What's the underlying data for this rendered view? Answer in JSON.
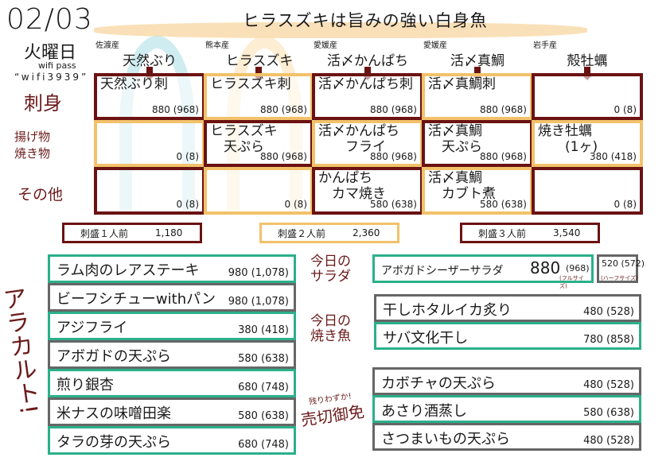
{
  "header": {
    "date": "02/03",
    "weekday": "火曜日",
    "wifi_label": "wifi pass",
    "wifi_pass": "“wifi3939”",
    "headline": "ヒラスズキは旨みの強い白身魚"
  },
  "colors": {
    "maroon": "#6b1212",
    "yellow": "#f2c26a",
    "teal": "#2bb08a",
    "gray": "#666666",
    "light_blue": "#bfe6ea"
  },
  "rows": [
    "刺身",
    "揚げ物\n焼き物",
    "その他"
  ],
  "columns": [
    {
      "origin": "佐渡産",
      "fish": "天然ぶり"
    },
    {
      "origin": "熊本産",
      "fish": "ヒラスズキ"
    },
    {
      "origin": "愛媛産",
      "fish": "活〆かんぱち"
    },
    {
      "origin": "愛媛産",
      "fish": "活〆真鯛"
    },
    {
      "origin": "岩手産",
      "fish": "殻牡蠣"
    }
  ],
  "grid": [
    [
      {
        "name": "天然ぶり刺",
        "price": "880 (968)"
      },
      {
        "name": "ヒラスズキ刺",
        "price": "880 (968)"
      },
      {
        "name": "活〆かんぱち刺",
        "price": "880 (968)"
      },
      {
        "name": "活〆真鯛刺",
        "price": "880 (968)"
      },
      {
        "name": "",
        "price": "0 (8)"
      }
    ],
    [
      {
        "name": "",
        "price": "0 (8)"
      },
      {
        "name": "ヒラスズキ\n　天ぷら",
        "price": "880 (968)"
      },
      {
        "name": "活〆かんぱち\n　　フライ",
        "price": "880 (968)"
      },
      {
        "name": "活〆真鯛\n　天ぷら",
        "price": "880 (968)"
      },
      {
        "name": "焼き牡蠣\n　　(1ヶ)",
        "price": "380 (418)"
      }
    ],
    [
      {
        "name": "",
        "price": "0 (8)"
      },
      {
        "name": "",
        "price": "0 (8)"
      },
      {
        "name": "かんぱち\n　カマ焼き",
        "price": "580 (638)"
      },
      {
        "name": "活〆真鯛\n　カブト煮",
        "price": "580 (638)"
      },
      {
        "name": "",
        "price": "0 (8)"
      }
    ]
  ],
  "sets": [
    {
      "label": "刺盛１人前",
      "price": "1,180"
    },
    {
      "label": "刺盛２人前",
      "price": "2,360"
    },
    {
      "label": "刺盛３人前",
      "price": "3,540"
    }
  ],
  "alacarte_label": "アラカルト!",
  "alacarte": [
    {
      "name": "ラム肉のレアステーキ",
      "price": "980 (1,078)"
    },
    {
      "name": "ビーフシチューwithパン",
      "price": "980 (1,078)"
    },
    {
      "name": "アジフライ",
      "price": "380 (418)"
    },
    {
      "name": "アボガドの天ぷら",
      "price": "580 (638)"
    },
    {
      "name": "煎り銀杏",
      "price": "680 (748)"
    },
    {
      "name": "米ナスの味噌田楽",
      "price": "580 (638)"
    },
    {
      "name": "タラの芽の天ぷら",
      "price": "680 (748)"
    }
  ],
  "salad": {
    "label": "今日の\nサラダ",
    "name": "アボガドシーザーサラダ",
    "price_full": "880",
    "price_full_tax": "(968)",
    "full_note": "(フルサイズ)",
    "price_half": "520 (572)",
    "half_note": "(ハーフサイズ)"
  },
  "grilled": {
    "label": "今日の\n焼き魚",
    "items": [
      {
        "name": "干しホタルイカ炙り",
        "price": "480 (528)"
      },
      {
        "name": "サバ文化干し",
        "price": "780 (858)"
      }
    ]
  },
  "soldout": {
    "note": "残りわずか!",
    "label": "売切御免",
    "items": [
      {
        "name": "カボチャの天ぷら",
        "price": "480 (528)"
      },
      {
        "name": "あさり酒蒸し",
        "price": "580 (638)"
      },
      {
        "name": "さつまいもの天ぷら",
        "price": "480 (528)"
      }
    ]
  }
}
